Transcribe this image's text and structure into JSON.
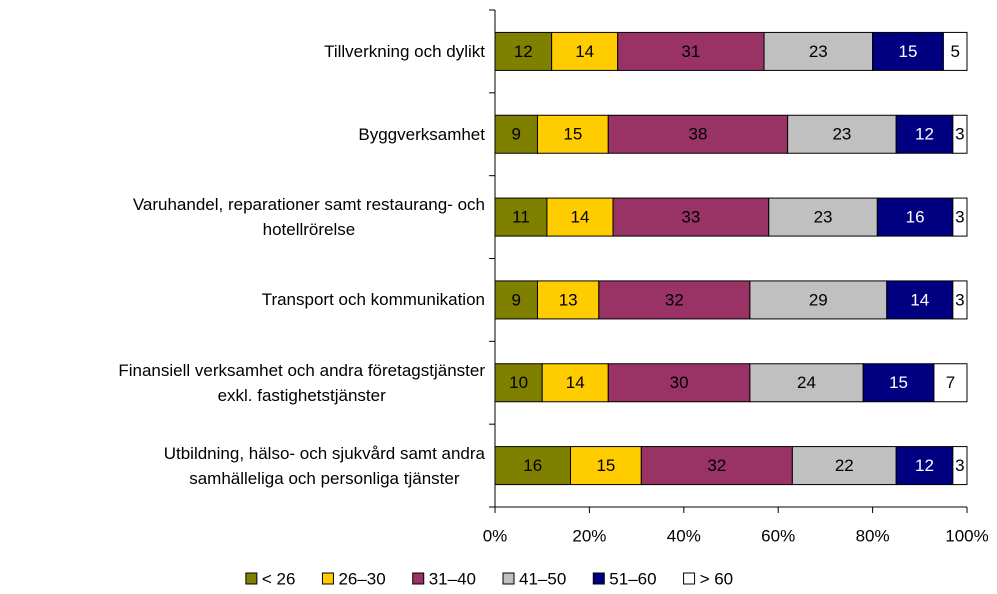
{
  "chart_data": {
    "type": "bar",
    "orientation": "horizontal",
    "stacked": true,
    "categories": [
      "Tillverkning och dylikt",
      "Byggverksamhet",
      "Varuhandel, reparationer samt restaurang- och\nhotellrörelse",
      "Transport och kommunikation",
      "Finansiell verksamhet och andra företagstjänster\nexkl. fastighetstjänster",
      "Utbildning, hälso- och sjukvård samt andra\nsamhälleliga och personliga tjänster"
    ],
    "series": [
      {
        "name": "< 26",
        "color": "#808000",
        "values": [
          12,
          9,
          11,
          9,
          10,
          16
        ]
      },
      {
        "name": "26–30",
        "color": "#ffcc00",
        "values": [
          14,
          15,
          14,
          13,
          14,
          15
        ]
      },
      {
        "name": "31–40",
        "color": "#993366",
        "values": [
          31,
          38,
          33,
          32,
          30,
          32
        ]
      },
      {
        "name": "41–50",
        "color": "#c0c0c0",
        "values": [
          23,
          23,
          23,
          29,
          24,
          22
        ]
      },
      {
        "name": "51–60",
        "color": "#000080",
        "values": [
          15,
          12,
          16,
          14,
          15,
          12
        ]
      },
      {
        "name": "> 60",
        "color": "#ffffff",
        "values": [
          5,
          3,
          3,
          3,
          7,
          3
        ]
      }
    ],
    "xlim": [
      0,
      100
    ],
    "xticks": [
      {
        "value": 0,
        "label": "0%"
      },
      {
        "value": 20,
        "label": "20%"
      },
      {
        "value": 40,
        "label": "40%"
      },
      {
        "value": 60,
        "label": "60%"
      },
      {
        "value": 80,
        "label": "80%"
      },
      {
        "value": 100,
        "label": "100%"
      }
    ],
    "legend": "bottom"
  }
}
